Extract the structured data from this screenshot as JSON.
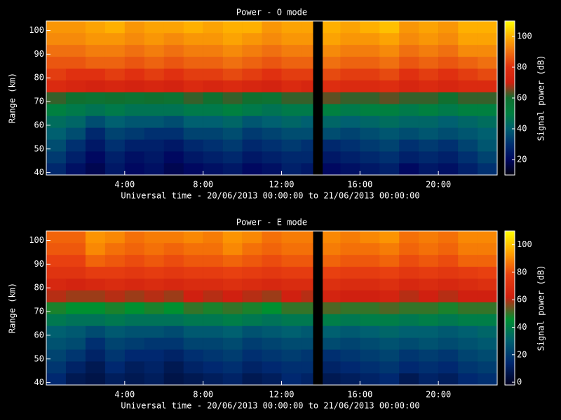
{
  "chart_data": [
    {
      "type": "heatmap",
      "title": "Power - O mode",
      "xlabel": "Universal time - 20/06/2013 00:00:00 to 21/06/2013 00:00:00",
      "ylabel": "Range (km)",
      "colorbar_label": "Signal power (dB)",
      "x_bins": [
        0,
        1,
        2,
        3,
        4,
        5,
        6,
        7,
        8,
        9,
        10,
        11,
        12,
        13,
        13.6,
        14.1,
        15,
        16,
        17,
        18,
        19,
        20,
        21,
        22,
        23
      ],
      "y_bins": [
        39,
        44,
        49,
        54,
        59,
        64,
        69,
        74,
        79,
        84,
        89,
        94,
        99,
        104
      ],
      "z": [
        [
          28,
          22,
          18,
          24,
          20,
          22,
          18,
          20,
          22,
          24,
          20,
          22,
          26,
          24,
          null,
          20,
          22,
          24,
          26,
          20,
          24,
          22,
          26,
          30
        ],
        [
          32,
          26,
          20,
          26,
          22,
          24,
          20,
          24,
          26,
          28,
          24,
          26,
          28,
          28,
          null,
          24,
          26,
          28,
          30,
          26,
          28,
          26,
          30,
          34
        ],
        [
          36,
          30,
          24,
          30,
          26,
          26,
          24,
          28,
          30,
          32,
          28,
          30,
          32,
          30,
          null,
          28,
          30,
          32,
          34,
          30,
          32,
          30,
          34,
          38
        ],
        [
          40,
          36,
          28,
          34,
          32,
          30,
          30,
          34,
          34,
          36,
          32,
          34,
          36,
          36,
          null,
          36,
          34,
          36,
          38,
          36,
          38,
          36,
          38,
          40
        ],
        [
          44,
          42,
          36,
          40,
          38,
          38,
          36,
          40,
          40,
          42,
          38,
          40,
          42,
          40,
          null,
          42,
          40,
          42,
          44,
          42,
          42,
          40,
          42,
          44
        ],
        [
          50,
          48,
          46,
          48,
          46,
          46,
          46,
          48,
          48,
          50,
          48,
          46,
          48,
          48,
          null,
          50,
          48,
          50,
          50,
          48,
          50,
          48,
          50,
          50
        ],
        [
          62,
          60,
          58,
          60,
          58,
          60,
          58,
          62,
          60,
          62,
          60,
          58,
          62,
          62,
          null,
          64,
          62,
          62,
          64,
          62,
          62,
          60,
          62,
          62
        ],
        [
          76,
          74,
          72,
          74,
          72,
          74,
          72,
          76,
          74,
          76,
          74,
          72,
          76,
          74,
          null,
          78,
          76,
          76,
          78,
          74,
          76,
          74,
          76,
          76
        ],
        [
          82,
          80,
          80,
          82,
          80,
          82,
          80,
          82,
          82,
          84,
          82,
          80,
          82,
          82,
          null,
          84,
          82,
          82,
          84,
          80,
          82,
          80,
          82,
          84
        ],
        [
          86,
          86,
          88,
          88,
          86,
          88,
          86,
          88,
          88,
          90,
          88,
          86,
          88,
          88,
          null,
          90,
          88,
          88,
          90,
          86,
          88,
          86,
          88,
          90
        ],
        [
          90,
          90,
          92,
          92,
          90,
          92,
          90,
          92,
          92,
          94,
          92,
          90,
          92,
          92,
          null,
          94,
          92,
          92,
          94,
          90,
          92,
          90,
          94,
          94
        ],
        [
          94,
          94,
          96,
          96,
          94,
          96,
          94,
          96,
          96,
          98,
          96,
          94,
          96,
          96,
          null,
          98,
          96,
          96,
          98,
          94,
          96,
          94,
          98,
          98
        ],
        [
          96,
          96,
          98,
          100,
          96,
          98,
          98,
          100,
          98,
          100,
          100,
          96,
          98,
          98,
          null,
          100,
          98,
          100,
          102,
          96,
          98,
          96,
          100,
          100
        ]
      ],
      "xlim": [
        0,
        23
      ],
      "ylim": [
        39,
        104
      ],
      "xticks": [
        {
          "value": 4,
          "label": "4:00"
        },
        {
          "value": 8,
          "label": "8:00"
        },
        {
          "value": 12,
          "label": "12:00"
        },
        {
          "value": 16,
          "label": "16:00"
        },
        {
          "value": 20,
          "label": "20:00"
        }
      ],
      "yticks": [
        40,
        50,
        60,
        70,
        80,
        90,
        100
      ],
      "clim": [
        10,
        110
      ],
      "cticks": [
        20,
        40,
        60,
        80,
        100
      ],
      "colormap": [
        "#000010",
        "#000860",
        "#003070",
        "#006070",
        "#008040",
        "#107030",
        "#d02010",
        "#e03010",
        "#f07010",
        "#ffb000",
        "#ffff00"
      ]
    },
    {
      "type": "heatmap",
      "title": "Power - E mode",
      "xlabel": "Universal time - 20/06/2013 00:00:00 to 21/06/2013 00:00:00",
      "ylabel": "Range (km)",
      "colorbar_label": "Signal power (dB)",
      "x_bins": [
        0,
        1,
        2,
        3,
        4,
        5,
        6,
        7,
        8,
        9,
        10,
        11,
        12,
        13,
        13.6,
        14.1,
        15,
        16,
        17,
        18,
        19,
        20,
        21,
        22,
        23
      ],
      "y_bins": [
        39,
        44,
        49,
        54,
        59,
        64,
        69,
        74,
        79,
        84,
        89,
        94,
        99,
        104
      ],
      "z": [
        [
          14,
          8,
          6,
          10,
          8,
          10,
          6,
          8,
          10,
          12,
          8,
          10,
          14,
          12,
          null,
          8,
          10,
          12,
          14,
          8,
          12,
          10,
          14,
          16
        ],
        [
          18,
          12,
          8,
          14,
          10,
          12,
          8,
          12,
          14,
          16,
          12,
          14,
          16,
          16,
          null,
          12,
          14,
          16,
          18,
          14,
          16,
          14,
          18,
          20
        ],
        [
          22,
          18,
          12,
          18,
          14,
          14,
          12,
          16,
          18,
          20,
          16,
          18,
          20,
          18,
          null,
          16,
          18,
          20,
          22,
          18,
          20,
          18,
          22,
          24
        ],
        [
          26,
          24,
          16,
          22,
          20,
          18,
          18,
          22,
          22,
          24,
          20,
          22,
          24,
          24,
          null,
          24,
          22,
          24,
          26,
          24,
          26,
          24,
          26,
          28
        ],
        [
          30,
          28,
          24,
          28,
          26,
          26,
          24,
          28,
          28,
          30,
          26,
          28,
          30,
          28,
          null,
          30,
          28,
          30,
          32,
          30,
          30,
          28,
          30,
          32
        ],
        [
          38,
          36,
          36,
          38,
          36,
          36,
          36,
          38,
          38,
          40,
          38,
          36,
          38,
          38,
          null,
          40,
          38,
          40,
          40,
          38,
          40,
          38,
          40,
          40
        ],
        [
          48,
          46,
          46,
          48,
          46,
          48,
          46,
          50,
          48,
          50,
          48,
          46,
          50,
          50,
          null,
          52,
          50,
          50,
          52,
          50,
          50,
          48,
          50,
          50
        ],
        [
          60,
          58,
          58,
          60,
          58,
          60,
          58,
          62,
          60,
          62,
          60,
          58,
          62,
          60,
          null,
          64,
          62,
          62,
          64,
          60,
          62,
          60,
          62,
          62
        ],
        [
          66,
          64,
          66,
          68,
          66,
          68,
          66,
          68,
          68,
          70,
          68,
          66,
          68,
          68,
          null,
          70,
          68,
          68,
          70,
          66,
          68,
          66,
          68,
          70
        ],
        [
          72,
          72,
          76,
          76,
          74,
          76,
          74,
          76,
          76,
          78,
          76,
          74,
          76,
          76,
          null,
          78,
          76,
          76,
          78,
          74,
          76,
          74,
          76,
          78
        ],
        [
          78,
          78,
          84,
          82,
          80,
          82,
          80,
          82,
          82,
          84,
          82,
          80,
          82,
          82,
          null,
          84,
          82,
          82,
          84,
          80,
          82,
          80,
          84,
          84
        ],
        [
          82,
          82,
          90,
          86,
          84,
          86,
          84,
          86,
          86,
          90,
          86,
          84,
          86,
          86,
          null,
          88,
          86,
          86,
          88,
          84,
          86,
          84,
          88,
          88
        ],
        [
          84,
          84,
          92,
          90,
          86,
          88,
          88,
          90,
          88,
          92,
          90,
          86,
          88,
          88,
          null,
          90,
          88,
          90,
          92,
          86,
          88,
          86,
          90,
          90
        ]
      ],
      "xlim": [
        0,
        23
      ],
      "ylim": [
        39,
        104
      ],
      "xticks": [
        {
          "value": 4,
          "label": "4:00"
        },
        {
          "value": 8,
          "label": "8:00"
        },
        {
          "value": 12,
          "label": "12:00"
        },
        {
          "value": 16,
          "label": "16:00"
        },
        {
          "value": 20,
          "label": "20:00"
        }
      ],
      "yticks": [
        40,
        50,
        60,
        70,
        80,
        90,
        100
      ],
      "clim": [
        -2,
        110
      ],
      "cticks": [
        0,
        20,
        40,
        60,
        80,
        100
      ],
      "colormap": [
        "#000020",
        "#002870",
        "#006070",
        "#009030",
        "#d02010",
        "#e84010",
        "#ffa000",
        "#ffff00"
      ]
    }
  ]
}
